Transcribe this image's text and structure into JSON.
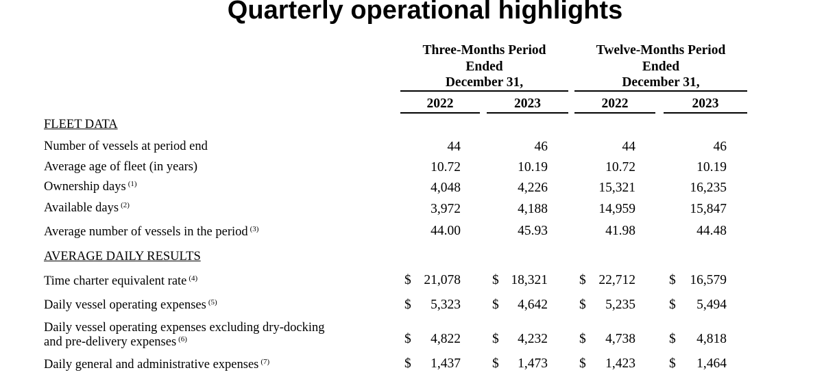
{
  "title": "Quarterly operational highlights",
  "column_groups": [
    {
      "line1": "Three-Months Period",
      "line2": "Ended",
      "line3": "December 31,",
      "years": [
        "2022",
        "2023"
      ]
    },
    {
      "line1": "Twelve-Months Period",
      "line2": "Ended",
      "line3": "December 31,",
      "years": [
        "2022",
        "2023"
      ]
    }
  ],
  "sections": {
    "fleet": "FLEET DATA",
    "daily": "AVERAGE DAILY RESULTS"
  },
  "fleet_rows": [
    {
      "label": "Number of vessels at period end",
      "note": "",
      "values": [
        "44",
        "46",
        "44",
        "46"
      ]
    },
    {
      "label": "Average age of fleet (in years)",
      "note": "",
      "values": [
        "10.72",
        "10.19",
        "10.72",
        "10.19"
      ]
    },
    {
      "label": "Ownership days",
      "note": "(1)",
      "values": [
        "4,048",
        "4,226",
        "15,321",
        "16,235"
      ]
    },
    {
      "label": "Available days",
      "note": "(2)",
      "values": [
        "3,972",
        "4,188",
        "14,959",
        "15,847"
      ]
    },
    {
      "label": "Average number of vessels in the period",
      "note": "(3)",
      "values": [
        "44.00",
        "45.93",
        "41.98",
        "44.48"
      ]
    }
  ],
  "currency_symbol": "$",
  "daily_rows": [
    {
      "label": "Time charter equivalent rate",
      "label2": "",
      "note": "(4)",
      "values": [
        "21,078",
        "18,321",
        "22,712",
        "16,579"
      ]
    },
    {
      "label": "Daily vessel operating expenses",
      "label2": "",
      "note": "(5)",
      "values": [
        "5,323",
        "4,642",
        "5,235",
        "5,494"
      ]
    },
    {
      "label": "Daily vessel operating expenses excluding dry-docking",
      "label2": "and pre-delivery expenses",
      "note": "(6)",
      "values": [
        "4,822",
        "4,232",
        "4,738",
        "4,818"
      ]
    },
    {
      "label": "Daily general and administrative expenses",
      "label2": "",
      "note": "(7)",
      "values": [
        "1,437",
        "1,473",
        "1,423",
        "1,464"
      ]
    }
  ]
}
